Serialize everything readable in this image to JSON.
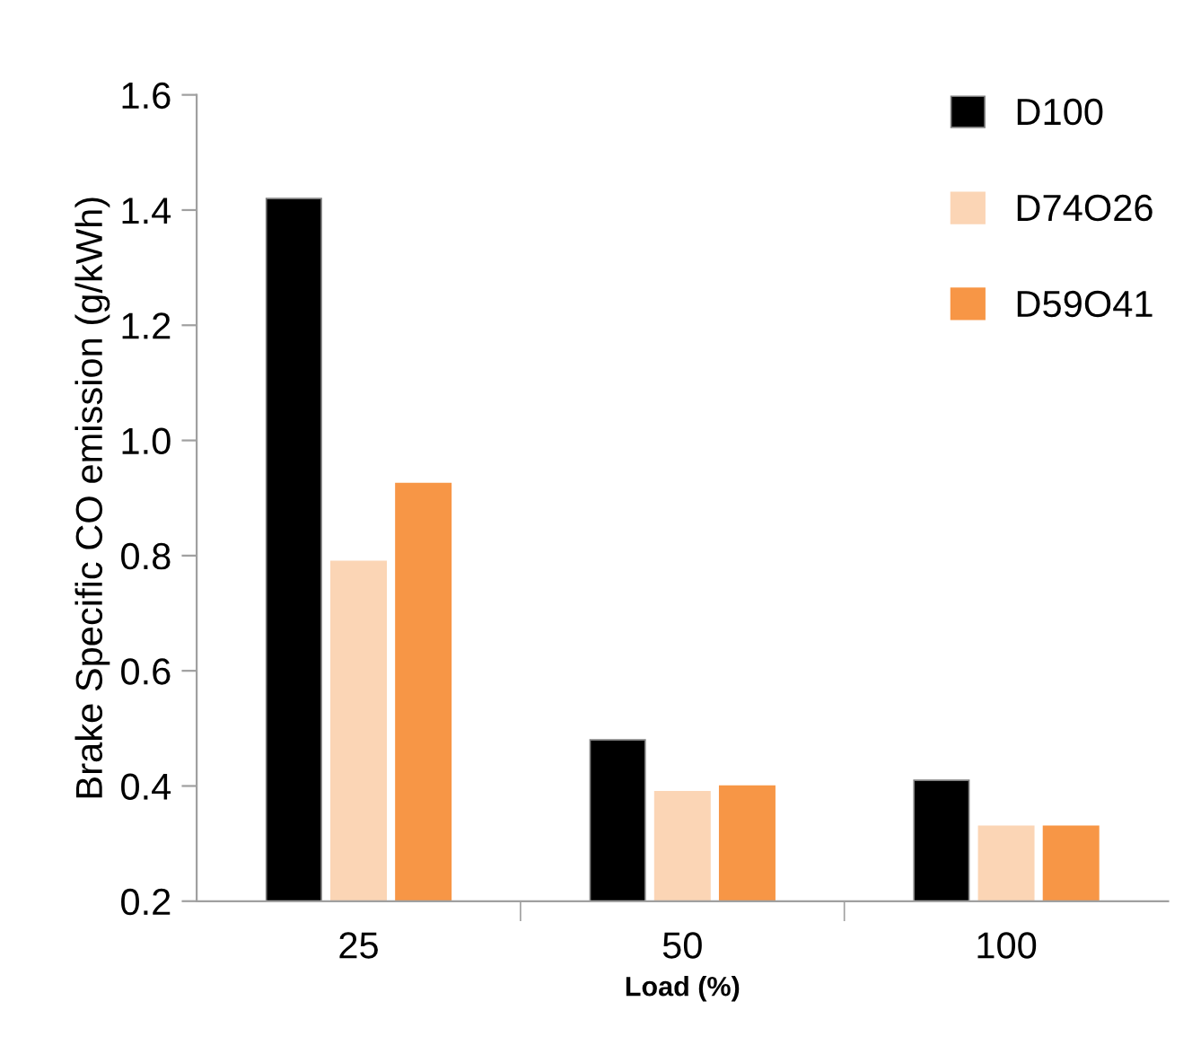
{
  "chart_data": {
    "type": "bar",
    "xlabel": "Load (%)",
    "ylabel": "Brake Specific CO emission (g/kWh)",
    "categories": [
      "25",
      "50",
      "100"
    ],
    "series": [
      {
        "name": "D100",
        "color": "#000000",
        "values": [
          1.42,
          0.48,
          0.41
        ]
      },
      {
        "name": "D74O26",
        "color": "#fbd5b5",
        "values": [
          0.79,
          0.39,
          0.33
        ]
      },
      {
        "name": "D59O41",
        "color": "#f79646",
        "values": [
          0.925,
          0.4,
          0.33
        ]
      }
    ],
    "ylim": [
      0.2,
      1.6
    ],
    "yticks": [
      {
        "value": 0.2,
        "label": "0.2"
      },
      {
        "value": 0.4,
        "label": "0.4"
      },
      {
        "value": 0.6,
        "label": "0.6"
      },
      {
        "value": 0.8,
        "label": "0.8"
      },
      {
        "value": 1.0,
        "label": "1.0"
      },
      {
        "value": 1.2,
        "label": "1.2"
      },
      {
        "value": 1.4,
        "label": "1.4"
      },
      {
        "value": 1.6,
        "label": "1.6"
      }
    ],
    "grid": false,
    "legend": "top right"
  }
}
